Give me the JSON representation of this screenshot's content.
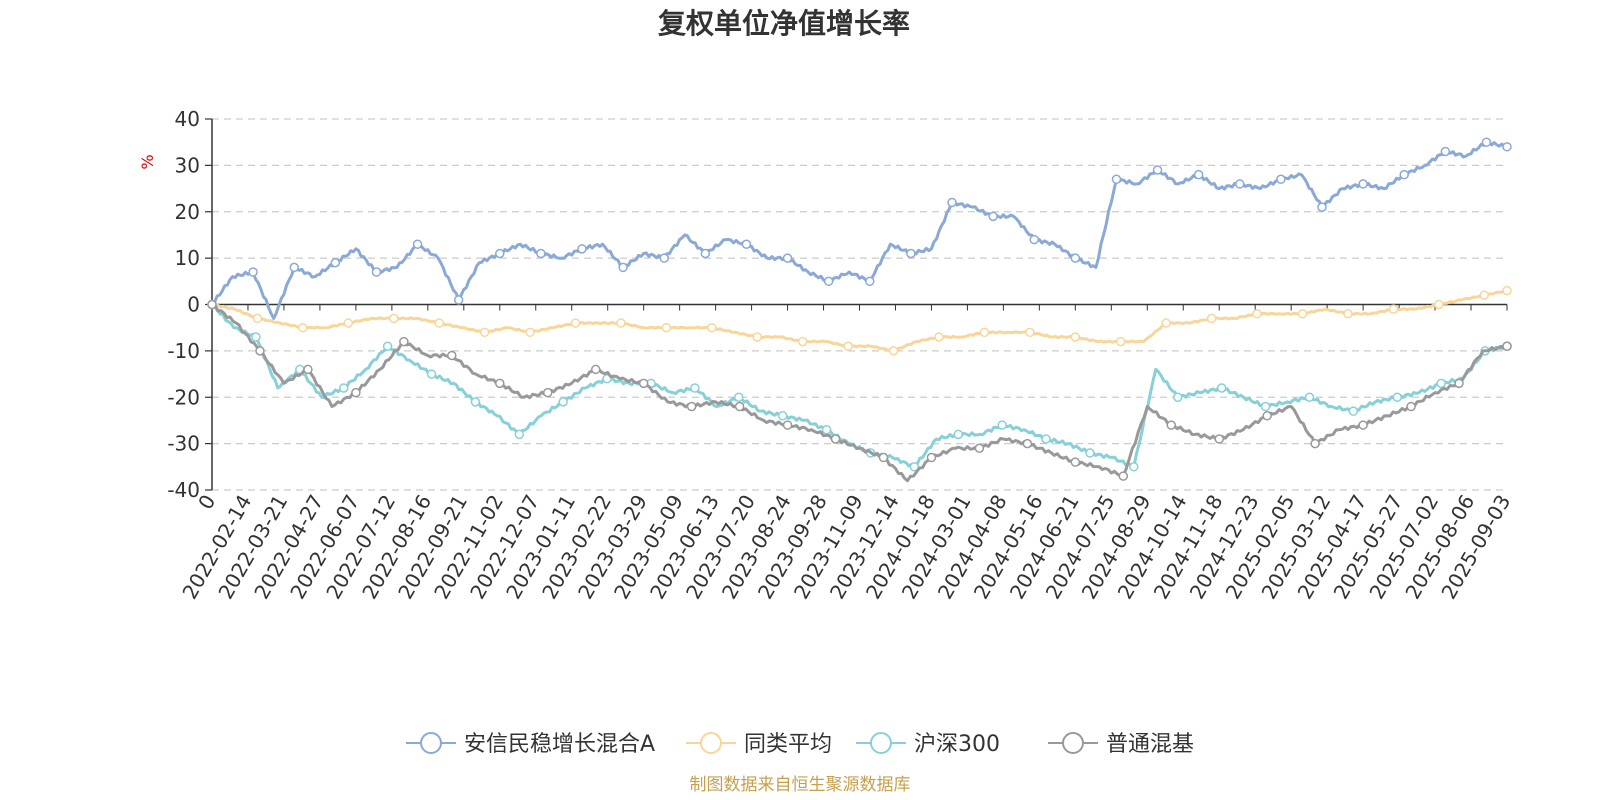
{
  "chart_data": {
    "type": "line",
    "title": "复权单位净值增长率",
    "y_unit": "%",
    "ylim": [
      -40,
      40
    ],
    "y_ticks": [
      40,
      30,
      20,
      10,
      0,
      -10,
      -20,
      -30,
      -40
    ],
    "x_tick_labels": [
      "0",
      "2022-02-14",
      "2022-03-21",
      "2022-04-27",
      "2022-06-07",
      "2022-07-12",
      "2022-08-16",
      "2022-09-21",
      "2022-11-02",
      "2022-12-07",
      "2023-01-11",
      "2023-02-22",
      "2023-03-29",
      "2023-05-09",
      "2023-06-13",
      "2023-07-20",
      "2023-08-24",
      "2023-09-28",
      "2023-11-09",
      "2023-12-14",
      "2024-01-18",
      "2024-03-01",
      "2024-04-08",
      "2024-05-16",
      "2024-06-21",
      "2024-07-25",
      "2024-08-29",
      "2024-10-14",
      "2024-11-18",
      "2024-12-23",
      "2025-02-05",
      "2025-03-12",
      "2025-04-17",
      "2025-05-27",
      "2025-07-02",
      "2025-08-06",
      "2025-09-03"
    ],
    "grid": true,
    "legend_position": "bottom",
    "series": [
      {
        "name": "安信民稳增长混合A",
        "color": "#8aa9d6",
        "values": [
          0,
          6,
          7,
          -3,
          8,
          6,
          9,
          12,
          7,
          8,
          13,
          10,
          1,
          9,
          11,
          13,
          11,
          10,
          12,
          13,
          8,
          11,
          10,
          15,
          11,
          14,
          13,
          10,
          10,
          7,
          5,
          7,
          5,
          13,
          11,
          12,
          22,
          21,
          19,
          19,
          14,
          13,
          10,
          8,
          27,
          26,
          29,
          26,
          28,
          25,
          26,
          25,
          27,
          28,
          21,
          25,
          26,
          25,
          28,
          30,
          33,
          32,
          35,
          34
        ]
      },
      {
        "name": "同类平均",
        "color": "#f8d598",
        "values": [
          0,
          -1,
          -3,
          -4,
          -5,
          -5,
          -4,
          -3,
          -3,
          -3,
          -4,
          -5,
          -6,
          -5,
          -6,
          -5,
          -4,
          -4,
          -4,
          -5,
          -5,
          -5,
          -5,
          -6,
          -7,
          -7,
          -8,
          -8,
          -9,
          -9,
          -10,
          -8,
          -7,
          -7,
          -6,
          -6,
          -6,
          -7,
          -7,
          -8,
          -8,
          -8,
          -4,
          -4,
          -3,
          -3,
          -2,
          -2,
          -2,
          -1,
          -2,
          -2,
          -1,
          -1,
          0,
          1,
          2,
          3
        ]
      },
      {
        "name": "沪深300",
        "color": "#87d0d8",
        "values": [
          0,
          -5,
          -7,
          -18,
          -14,
          -20,
          -18,
          -14,
          -9,
          -12,
          -15,
          -17,
          -21,
          -24,
          -28,
          -24,
          -21,
          -18,
          -16,
          -17,
          -17,
          -19,
          -18,
          -22,
          -20,
          -23,
          -24,
          -25,
          -27,
          -30,
          -32,
          -33,
          -35,
          -29,
          -28,
          -28,
          -26,
          -27,
          -29,
          -30,
          -32,
          -33,
          -35,
          -14,
          -20,
          -19,
          -18,
          -20,
          -22,
          -21,
          -20,
          -22,
          -23,
          -21,
          -20,
          -19,
          -17,
          -16,
          -10,
          -9
        ]
      },
      {
        "name": "普通混基",
        "color": "#999999",
        "values": [
          0,
          -4,
          -10,
          -17,
          -14,
          -22,
          -19,
          -14,
          -8,
          -11,
          -11,
          -15,
          -17,
          -20,
          -19,
          -17,
          -14,
          -16,
          -17,
          -21,
          -22,
          -21,
          -22,
          -25,
          -26,
          -27,
          -29,
          -31,
          -33,
          -38,
          -33,
          -31,
          -31,
          -29,
          -30,
          -32,
          -34,
          -35,
          -37,
          -22,
          -26,
          -28,
          -29,
          -27,
          -24,
          -22,
          -30,
          -27,
          -26,
          -24,
          -22,
          -19,
          -17,
          -10,
          -9
        ]
      }
    ]
  },
  "legend": [
    {
      "label": "安信民稳增长混合A",
      "color": "#8aa9d6"
    },
    {
      "label": "同类平均",
      "color": "#f8d598"
    },
    {
      "label": "沪深300",
      "color": "#87d0d8"
    },
    {
      "label": "普通混基",
      "color": "#999999"
    }
  ],
  "footer": {
    "source": "制图数据来自恒生聚源数据库"
  }
}
